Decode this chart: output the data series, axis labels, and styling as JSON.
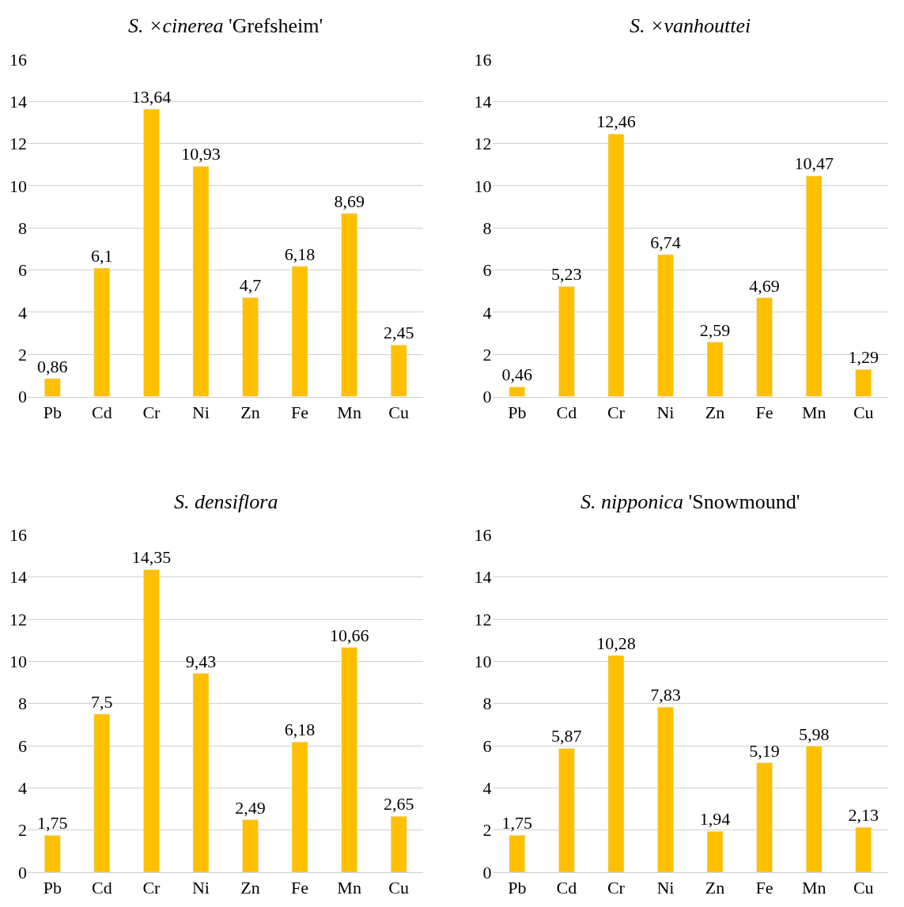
{
  "chart_data": [
    {
      "type": "bar",
      "title": "S. ×cinerea 'Grefsheim'",
      "categories": [
        "Pb",
        "Cd",
        "Cr",
        "Ni",
        "Zn",
        "Fe",
        "Mn",
        "Cu"
      ],
      "values": [
        0.86,
        6.1,
        13.64,
        10.93,
        4.7,
        6.18,
        8.69,
        2.45
      ],
      "value_labels": [
        "0,86",
        "6,1",
        "13,64",
        "10,93",
        "4,7",
        "6,18",
        "8,69",
        "2,45"
      ],
      "color": "#ffc000",
      "ylim": [
        0,
        16
      ],
      "yticks": [
        0,
        2,
        4,
        6,
        8,
        10,
        12,
        14,
        16
      ],
      "grid": "y"
    },
    {
      "type": "bar",
      "title": "S. ×vanhouttei",
      "categories": [
        "Pb",
        "Cd",
        "Cr",
        "Ni",
        "Zn",
        "Fe",
        "Mn",
        "Cu"
      ],
      "values": [
        0.46,
        5.23,
        12.46,
        6.74,
        2.59,
        4.69,
        10.47,
        1.29
      ],
      "value_labels": [
        "0,46",
        "5,23",
        "12,46",
        "6,74",
        "2,59",
        "4,69",
        "10,47",
        "1,29"
      ],
      "color": "#ffc000",
      "ylim": [
        0,
        16
      ],
      "yticks": [
        0,
        2,
        4,
        6,
        8,
        10,
        12,
        14,
        16
      ],
      "grid": "y"
    },
    {
      "type": "bar",
      "title": "S. densiflora",
      "categories": [
        "Pb",
        "Cd",
        "Cr",
        "Ni",
        "Zn",
        "Fe",
        "Mn",
        "Cu"
      ],
      "values": [
        1.75,
        7.5,
        14.35,
        9.43,
        2.49,
        6.18,
        10.66,
        2.65
      ],
      "value_labels": [
        "1,75",
        "7,5",
        "14,35",
        "9,43",
        "2,49",
        "6,18",
        "10,66",
        "2,65"
      ],
      "color": "#ffc000",
      "ylim": [
        0,
        16
      ],
      "yticks": [
        0,
        2,
        4,
        6,
        8,
        10,
        12,
        14,
        16
      ],
      "grid": "y"
    },
    {
      "type": "bar",
      "title": "S. nipponica 'Snowmound'",
      "categories": [
        "Pb",
        "Cd",
        "Cr",
        "Ni",
        "Zn",
        "Fe",
        "Mn",
        "Cu"
      ],
      "values": [
        1.75,
        5.87,
        10.28,
        7.83,
        1.94,
        5.19,
        5.98,
        2.13
      ],
      "value_labels": [
        "1,75",
        "5,87",
        "10,28",
        "7,83",
        "1,94",
        "5,19",
        "5,98",
        "2,13"
      ],
      "color": "#ffc000",
      "ylim": [
        0,
        16
      ],
      "yticks": [
        0,
        2,
        4,
        6,
        8,
        10,
        12,
        14,
        16
      ],
      "grid": "y"
    }
  ]
}
